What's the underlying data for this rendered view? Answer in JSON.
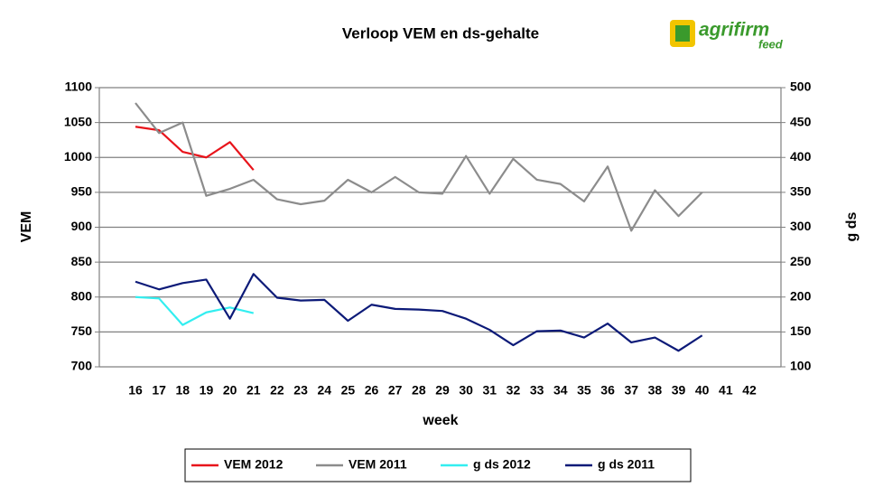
{
  "chart_data": {
    "type": "line",
    "title": "Verloop VEM en ds-gehalte",
    "logo_text": "agrifirm",
    "logo_subtext": "feed",
    "x_label": "week",
    "y_label": "VEM",
    "y2_label": "g ds",
    "categories": [
      "16",
      "17",
      "18",
      "19",
      "20",
      "21",
      "22",
      "23",
      "24",
      "25",
      "26",
      "27",
      "28",
      "29",
      "30",
      "31",
      "32",
      "33",
      "34",
      "35",
      "36",
      "37",
      "38",
      "39",
      "40",
      "41",
      "42"
    ],
    "ylim": [
      700,
      1100
    ],
    "yticks": [
      700,
      750,
      800,
      850,
      900,
      950,
      1000,
      1050,
      1100
    ],
    "y2lim": [
      100,
      500
    ],
    "y2ticks": [
      100,
      150,
      200,
      250,
      300,
      350,
      400,
      450,
      500
    ],
    "grid": true,
    "legend": "bottom",
    "series": [
      {
        "name": "VEM 2012",
        "color": "#e8141b",
        "values": [
          1044,
          1039,
          1008,
          1000,
          1022,
          982,
          null,
          null,
          null,
          null,
          null,
          null,
          null,
          null,
          null,
          null,
          null,
          null,
          null,
          null,
          null,
          null,
          null,
          null,
          null,
          null,
          null
        ]
      },
      {
        "name": "VEM 2011",
        "color": "#8c8c8c",
        "values": [
          1078,
          1035,
          1050,
          945,
          955,
          968,
          940,
          933,
          938,
          968,
          950,
          972,
          950,
          948,
          1002,
          948,
          998,
          968,
          962,
          937,
          987,
          895,
          953,
          916,
          950,
          null,
          null
        ]
      },
      {
        "name": "g ds 2012",
        "color": "#33eef0",
        "axis": "y2",
        "values": [
          200,
          198,
          160,
          178,
          185,
          177,
          null,
          null,
          null,
          null,
          null,
          null,
          null,
          null,
          null,
          null,
          null,
          null,
          null,
          null,
          null,
          null,
          null,
          null,
          null,
          null,
          null
        ]
      },
      {
        "name": "g ds 2011",
        "color": "#0c1a78",
        "axis": "y2",
        "values": [
          222,
          211,
          220,
          225,
          169,
          233,
          199,
          195,
          196,
          166,
          189,
          183,
          182,
          180,
          169,
          153,
          131,
          151,
          152,
          142,
          162,
          135,
          142,
          123,
          145,
          null,
          null
        ]
      }
    ]
  }
}
